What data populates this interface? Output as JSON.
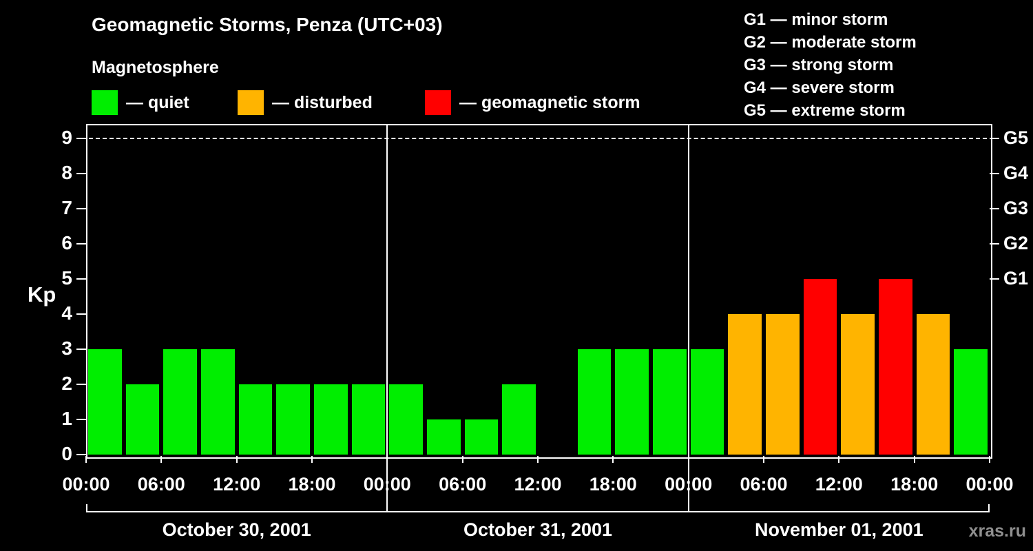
{
  "title": "Geomagnetic Storms, Penza (UTC+03)",
  "subtitle": "Magnetosphere",
  "legend": {
    "quiet_label": "— quiet",
    "disturbed_label": "— disturbed",
    "storm_label": "— geomagnetic storm"
  },
  "storm_scale": [
    "G1 — minor storm",
    "G2 — moderate storm",
    "G3 — strong storm",
    "G4 — severe storm",
    "G5 — extreme storm"
  ],
  "watermark": "xras.ru",
  "chart_data": {
    "type": "bar",
    "title": "Geomagnetic Storms, Penza (UTC+03)",
    "ylabel": "Kp",
    "ylim": [
      0,
      9
    ],
    "yticks": [
      0,
      1,
      2,
      3,
      4,
      5,
      6,
      7,
      8,
      9
    ],
    "right_axis": [
      {
        "label": "G1",
        "kp": 5
      },
      {
        "label": "G2",
        "kp": 6
      },
      {
        "label": "G3",
        "kp": 7
      },
      {
        "label": "G4",
        "kp": 8
      },
      {
        "label": "G5",
        "kp": 9
      }
    ],
    "x_tick_labels": [
      "00:00",
      "06:00",
      "12:00",
      "18:00",
      "00:00",
      "06:00",
      "12:00",
      "18:00",
      "00:00",
      "06:00",
      "12:00",
      "18:00",
      "00:00"
    ],
    "interval_hours": 3,
    "days": [
      {
        "date": "October 30, 2001",
        "values": [
          3,
          2,
          3,
          3,
          2,
          2,
          2,
          2
        ]
      },
      {
        "date": "October 31, 2001",
        "values": [
          2,
          1,
          1,
          2,
          0,
          3,
          3,
          3
        ]
      },
      {
        "date": "November 01, 2001",
        "values": [
          3,
          4,
          4,
          5,
          4,
          5,
          4,
          3
        ]
      }
    ],
    "colors": {
      "quiet": "#00ee00",
      "disturbed": "#ffb400",
      "storm": "#ff0000",
      "axis": "#ffffff",
      "background": "#000000"
    },
    "color_rule": {
      "quiet_max": 3,
      "disturbed_max": 4
    },
    "grid": {
      "dashed_line_at_kp": 9
    },
    "legend_position": "top"
  }
}
